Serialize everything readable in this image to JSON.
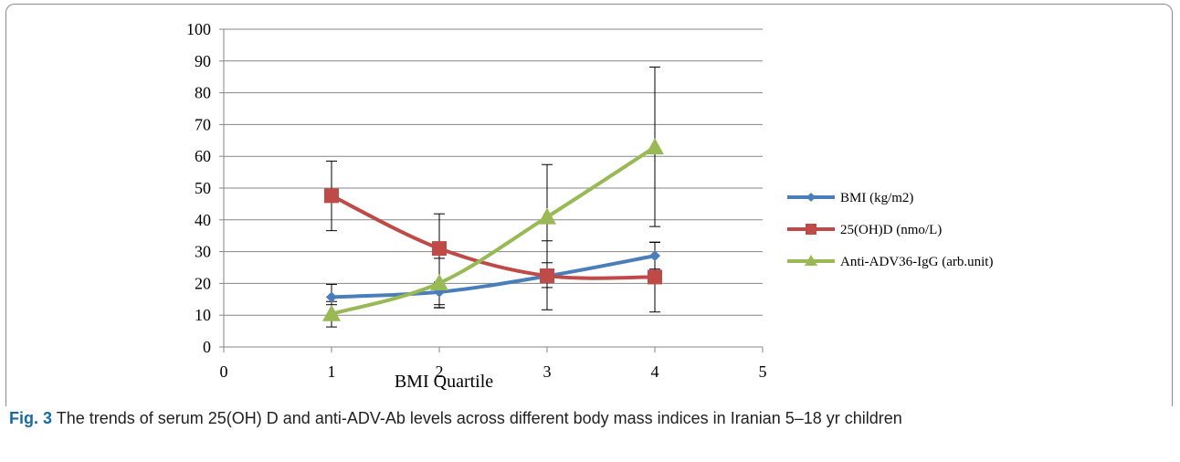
{
  "caption": {
    "label": "Fig. 3",
    "text": "The trends of serum 25(OH) D and anti-ADV-Ab levels across different body mass indices in Iranian 5–18 yr children"
  },
  "chart_data": {
    "type": "line",
    "xlabel": "BMI Quartile",
    "ylabel": "",
    "xlim": [
      0,
      5
    ],
    "ylim": [
      0,
      100
    ],
    "x_ticks": [
      0,
      1,
      2,
      3,
      4,
      5
    ],
    "y_ticks": [
      0,
      10,
      20,
      30,
      40,
      50,
      60,
      70,
      80,
      90,
      100
    ],
    "grid": "horizontal",
    "legend_position": "right",
    "x": [
      1,
      2,
      3,
      4
    ],
    "series": [
      {
        "name": "BMI (kg/m2)",
        "color": "#4a7ebb",
        "marker": "diamond",
        "values": [
          15.7,
          17.3,
          22.3,
          28.7
        ],
        "error_low": [
          13.3,
          12.3,
          18.7,
          24.5
        ],
        "error_high": [
          19.7,
          20.4,
          26.5,
          32.9
        ]
      },
      {
        "name": "25(OH)D (nmo/L)",
        "color": "#be4b48",
        "marker": "square",
        "values": [
          47.6,
          31.0,
          22.4,
          22.0
        ],
        "error_low": [
          36.6,
          13.3,
          11.7,
          11.0
        ],
        "error_high": [
          58.5,
          41.9,
          33.4,
          33.0
        ]
      },
      {
        "name": "Anti-ADV36-IgG (arb.unit)",
        "color": "#98b954",
        "marker": "triangle",
        "values": [
          10.4,
          20.1,
          40.9,
          62.9
        ],
        "error_low": [
          6.3,
          12.4,
          24.3,
          37.9
        ],
        "error_high": [
          14.3,
          27.9,
          57.4,
          88.1
        ]
      }
    ]
  }
}
